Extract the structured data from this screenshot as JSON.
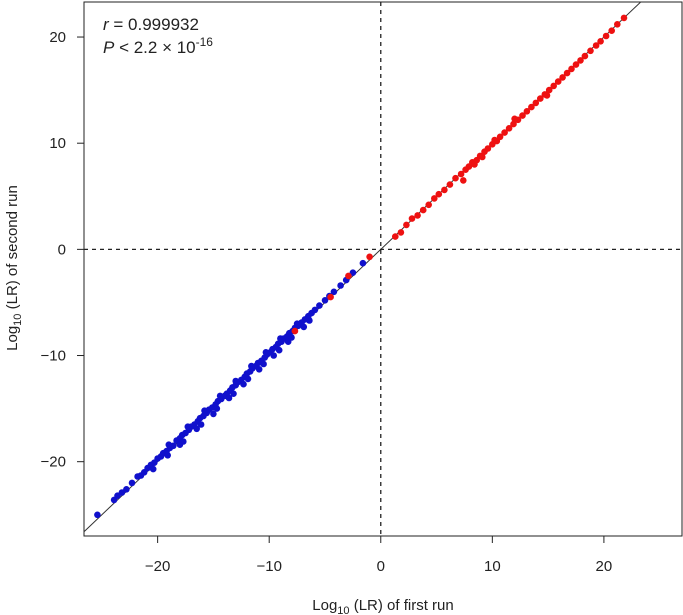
{
  "chart_data": {
    "type": "scatter",
    "title": "",
    "xlabel": {
      "prefix": "Log",
      "sub": "10",
      "suffix": " (LR) of first run"
    },
    "ylabel": {
      "prefix": "Log",
      "sub": "10",
      "suffix": " (LR) of second run"
    },
    "xlim": [
      -26.6,
      27
    ],
    "ylim": [
      -27,
      23.3
    ],
    "x_ticks": [
      -20,
      -10,
      0,
      10,
      20
    ],
    "x_tick_labels": [
      "−20",
      "−10",
      "0",
      "10",
      "20"
    ],
    "y_ticks": [
      -20,
      -10,
      0,
      10,
      20
    ],
    "y_tick_labels": [
      "−20",
      "−10",
      "0",
      "10",
      "20"
    ],
    "grid": false,
    "reference_lines": [
      {
        "kind": "identity",
        "style": "solid",
        "color": "#333333"
      },
      {
        "kind": "vertical",
        "x": 0,
        "style": "dashed",
        "color": "#222222"
      },
      {
        "kind": "horizontal",
        "y": 0,
        "style": "dashed",
        "color": "#222222"
      }
    ],
    "annotation": {
      "r_symbol": "r",
      "r_text": " = 0.999932",
      "p_symbol": "P",
      "p_text": " < 2.2 × 10",
      "p_exponent": "-16"
    },
    "series": [
      {
        "color": "#1010cc",
        "points": [
          [
            -25.4,
            -25.0
          ],
          [
            -23.9,
            -23.6
          ],
          [
            -23.6,
            -23.2
          ],
          [
            -23.2,
            -22.9
          ],
          [
            -22.8,
            -22.6
          ],
          [
            -22.3,
            -22.0
          ],
          [
            -21.5,
            -21.3
          ],
          [
            -21.2,
            -21.0
          ],
          [
            -20.9,
            -20.6
          ],
          [
            -20.6,
            -20.3
          ],
          [
            -20.3,
            -20.1
          ],
          [
            -20.0,
            -19.7
          ],
          [
            -19.7,
            -19.5
          ],
          [
            -19.5,
            -19.2
          ],
          [
            -19.2,
            -19.0
          ],
          [
            -18.9,
            -18.7
          ],
          [
            -18.6,
            -18.5
          ],
          [
            -18.3,
            -18.0
          ],
          [
            -18.0,
            -17.8
          ],
          [
            -17.8,
            -17.5
          ],
          [
            -17.5,
            -17.3
          ],
          [
            -17.2,
            -17.0
          ],
          [
            -17.0,
            -16.7
          ],
          [
            -16.7,
            -16.5
          ],
          [
            -16.4,
            -16.2
          ],
          [
            -16.2,
            -15.9
          ],
          [
            -15.9,
            -15.7
          ],
          [
            -15.6,
            -15.4
          ],
          [
            -15.4,
            -15.1
          ],
          [
            -15.1,
            -14.9
          ],
          [
            -14.8,
            -14.6
          ],
          [
            -14.6,
            -14.3
          ],
          [
            -14.3,
            -14.1
          ],
          [
            -14.0,
            -13.8
          ],
          [
            -13.8,
            -13.6
          ],
          [
            -13.5,
            -13.3
          ],
          [
            -13.3,
            -13.0
          ],
          [
            -13.0,
            -12.8
          ],
          [
            -12.8,
            -12.5
          ],
          [
            -12.5,
            -12.3
          ],
          [
            -12.2,
            -12.0
          ],
          [
            -12.0,
            -11.7
          ],
          [
            -11.7,
            -11.5
          ],
          [
            -11.5,
            -11.2
          ],
          [
            -11.2,
            -11.0
          ],
          [
            -11.0,
            -10.7
          ],
          [
            -10.7,
            -10.5
          ],
          [
            -10.4,
            -10.2
          ],
          [
            -10.2,
            -9.9
          ],
          [
            -9.9,
            -9.7
          ],
          [
            -9.7,
            -9.4
          ],
          [
            -9.4,
            -9.2
          ],
          [
            -9.2,
            -8.9
          ],
          [
            -8.9,
            -8.7
          ],
          [
            -8.7,
            -8.4
          ],
          [
            -8.4,
            -8.2
          ],
          [
            -8.2,
            -7.9
          ],
          [
            -7.9,
            -7.7
          ],
          [
            -7.7,
            -7.4
          ],
          [
            -7.4,
            -7.2
          ],
          [
            -7.1,
            -6.9
          ],
          [
            -6.8,
            -6.6
          ],
          [
            -6.5,
            -6.3
          ],
          [
            -6.2,
            -6.0
          ],
          [
            -5.9,
            -5.7
          ],
          [
            -5.5,
            -5.3
          ],
          [
            -5.0,
            -4.8
          ],
          [
            -4.6,
            -4.4
          ],
          [
            -4.2,
            -4.0
          ],
          [
            -3.6,
            -3.4
          ],
          [
            -3.1,
            -2.9
          ],
          [
            -2.5,
            -2.2
          ],
          [
            -1.6,
            -1.3
          ],
          [
            -19.0,
            -18.4
          ],
          [
            -18.0,
            -18.4
          ],
          [
            -17.3,
            -16.7
          ],
          [
            -16.5,
            -16.9
          ],
          [
            -15.8,
            -15.2
          ],
          [
            -15.0,
            -15.5
          ],
          [
            -14.4,
            -13.8
          ],
          [
            -13.6,
            -14.0
          ],
          [
            -13.0,
            -12.4
          ],
          [
            -12.3,
            -12.7
          ],
          [
            -11.6,
            -11.0
          ],
          [
            -10.9,
            -11.3
          ],
          [
            -10.3,
            -9.7
          ],
          [
            -9.6,
            -10.0
          ],
          [
            -9.0,
            -8.4
          ],
          [
            -8.3,
            -8.7
          ],
          [
            -7.5,
            -7.0
          ],
          [
            -6.9,
            -7.3
          ],
          [
            -21.8,
            -21.4
          ],
          [
            -20.4,
            -20.7
          ],
          [
            -19.1,
            -19.4
          ],
          [
            -17.7,
            -18.1
          ],
          [
            -16.1,
            -16.5
          ],
          [
            -14.7,
            -15.0
          ],
          [
            -13.2,
            -13.6
          ],
          [
            -11.9,
            -12.2
          ],
          [
            -10.5,
            -10.8
          ],
          [
            -9.1,
            -9.5
          ],
          [
            -8.0,
            -8.3
          ],
          [
            -6.4,
            -6.7
          ]
        ]
      },
      {
        "color": "#ee1111",
        "points": [
          [
            -1.0,
            -0.7
          ],
          [
            -2.9,
            -2.5
          ],
          [
            -4.5,
            -4.5
          ],
          [
            -7.7,
            -7.7
          ],
          [
            1.3,
            1.2
          ],
          [
            1.8,
            1.6
          ],
          [
            2.3,
            2.3
          ],
          [
            2.8,
            2.9
          ],
          [
            3.3,
            3.2
          ],
          [
            3.8,
            3.7
          ],
          [
            4.3,
            4.2
          ],
          [
            4.8,
            4.8
          ],
          [
            5.2,
            5.2
          ],
          [
            5.7,
            5.6
          ],
          [
            6.2,
            6.1
          ],
          [
            6.7,
            6.7
          ],
          [
            7.2,
            7.1
          ],
          [
            7.6,
            7.5
          ],
          [
            7.9,
            7.8
          ],
          [
            8.2,
            8.2
          ],
          [
            8.6,
            8.4
          ],
          [
            8.9,
            8.8
          ],
          [
            9.3,
            9.2
          ],
          [
            9.6,
            9.5
          ],
          [
            10.0,
            9.9
          ],
          [
            10.4,
            10.2
          ],
          [
            10.7,
            10.6
          ],
          [
            11.1,
            11.0
          ],
          [
            11.5,
            11.4
          ],
          [
            11.9,
            11.8
          ],
          [
            12.3,
            12.2
          ],
          [
            12.7,
            12.6
          ],
          [
            13.1,
            13.0
          ],
          [
            13.5,
            13.4
          ],
          [
            13.9,
            13.8
          ],
          [
            14.3,
            14.2
          ],
          [
            14.7,
            14.6
          ],
          [
            15.1,
            15.0
          ],
          [
            15.5,
            15.4
          ],
          [
            15.9,
            15.8
          ],
          [
            16.3,
            16.2
          ],
          [
            16.7,
            16.6
          ],
          [
            17.1,
            17.0
          ],
          [
            17.5,
            17.4
          ],
          [
            17.9,
            17.8
          ],
          [
            18.3,
            18.2
          ],
          [
            18.8,
            18.7
          ],
          [
            19.3,
            19.2
          ],
          [
            19.7,
            19.6
          ],
          [
            20.2,
            20.1
          ],
          [
            20.7,
            20.6
          ],
          [
            21.2,
            21.2
          ],
          [
            21.8,
            21.8
          ],
          [
            7.4,
            6.5
          ],
          [
            8.4,
            8.0
          ],
          [
            9.1,
            8.7
          ],
          [
            10.2,
            10.3
          ],
          [
            12.0,
            12.3
          ],
          [
            14.9,
            14.5
          ]
        ]
      }
    ]
  }
}
